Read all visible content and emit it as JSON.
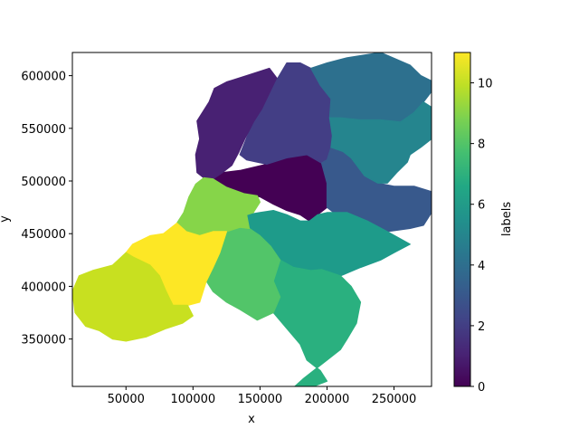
{
  "chart_data": {
    "type": "heatmap",
    "title": "",
    "xlabel": "x",
    "ylabel": "y",
    "xlim": [
      10000,
      278000
    ],
    "ylim": [
      305000,
      622000
    ],
    "x_ticks": [
      50000,
      100000,
      150000,
      200000,
      250000
    ],
    "y_ticks": [
      350000,
      400000,
      450000,
      500000,
      550000,
      600000
    ],
    "grid": false,
    "colorbar": {
      "label": "labels",
      "range": [
        0,
        11
      ],
      "ticks": [
        0,
        2,
        4,
        6,
        8,
        10
      ],
      "colormap": "viridis"
    },
    "regions": [
      {
        "label": 0,
        "color": "#440154",
        "outline": [
          [
            135000,
            510000
          ],
          [
            155000,
            516000
          ],
          [
            170000,
            522000
          ],
          [
            185000,
            525000
          ],
          [
            196000,
            517000
          ],
          [
            200000,
            498000
          ],
          [
            200000,
            475000
          ],
          [
            193000,
            468000
          ],
          [
            187000,
            462000
          ],
          [
            180000,
            468000
          ],
          [
            170000,
            472000
          ],
          [
            160000,
            478000
          ],
          [
            150000,
            485000
          ],
          [
            138000,
            488000
          ],
          [
            125000,
            494000
          ],
          [
            115000,
            502000
          ],
          [
            122000,
            508000
          ]
        ]
      },
      {
        "label": 1,
        "color": "#482173",
        "outline": [
          [
            116000,
            588000
          ],
          [
            125000,
            594000
          ],
          [
            140000,
            600000
          ],
          [
            157000,
            607000
          ],
          [
            163000,
            597000
          ],
          [
            159000,
            583000
          ],
          [
            152000,
            568000
          ],
          [
            146000,
            556000
          ],
          [
            139000,
            541000
          ],
          [
            134000,
            527000
          ],
          [
            129000,
            515000
          ],
          [
            122000,
            508000
          ],
          [
            115000,
            502000
          ],
          [
            108000,
            503000
          ],
          [
            103000,
            508000
          ],
          [
            102000,
            525000
          ],
          [
            105000,
            540000
          ],
          [
            103000,
            557000
          ],
          [
            112000,
            575000
          ]
        ]
      },
      {
        "label": 2,
        "color": "#433e85",
        "outline": [
          [
            163000,
            597000
          ],
          [
            170000,
            612000
          ],
          [
            180000,
            612000
          ],
          [
            188000,
            607000
          ],
          [
            195000,
            591000
          ],
          [
            203000,
            578000
          ],
          [
            202000,
            560000
          ],
          [
            204000,
            543000
          ],
          [
            203000,
            532000
          ],
          [
            200000,
            520000
          ],
          [
            196000,
            517000
          ],
          [
            185000,
            525000
          ],
          [
            170000,
            522000
          ],
          [
            155000,
            516000
          ],
          [
            140000,
            520000
          ],
          [
            135000,
            525000
          ],
          [
            140000,
            541000
          ],
          [
            146000,
            556000
          ],
          [
            152000,
            568000
          ]
        ]
      },
      {
        "label": 3,
        "color": "#38598c",
        "outline": [
          [
            203000,
            532000
          ],
          [
            212000,
            528000
          ],
          [
            218000,
            522000
          ],
          [
            228000,
            505000
          ],
          [
            238000,
            498000
          ],
          [
            250000,
            495000
          ],
          [
            265000,
            495000
          ],
          [
            278000,
            490000
          ],
          [
            278000,
            470000
          ],
          [
            272000,
            458000
          ],
          [
            262000,
            455000
          ],
          [
            245000,
            452000
          ],
          [
            230000,
            462000
          ],
          [
            215000,
            470000
          ],
          [
            205000,
            470000
          ],
          [
            200000,
            475000
          ],
          [
            200000,
            498000
          ],
          [
            196000,
            517000
          ],
          [
            200000,
            520000
          ]
        ]
      },
      {
        "label": 4,
        "color": "#2d708e",
        "outline": [
          [
            188000,
            607000
          ],
          [
            200000,
            612000
          ],
          [
            215000,
            617000
          ],
          [
            240000,
            622000
          ],
          [
            262000,
            610000
          ],
          [
            270000,
            600000
          ],
          [
            278000,
            595000
          ],
          [
            278000,
            585000
          ],
          [
            272000,
            575000
          ],
          [
            265000,
            565000
          ],
          [
            255000,
            556000
          ],
          [
            240000,
            558000
          ],
          [
            225000,
            558000
          ],
          [
            210000,
            560000
          ],
          [
            202000,
            560000
          ],
          [
            203000,
            578000
          ],
          [
            195000,
            591000
          ]
        ]
      },
      {
        "label": 5,
        "color": "#25858e",
        "outline": [
          [
            202000,
            560000
          ],
          [
            210000,
            560000
          ],
          [
            225000,
            558000
          ],
          [
            240000,
            558000
          ],
          [
            255000,
            556000
          ],
          [
            265000,
            565000
          ],
          [
            272000,
            575000
          ],
          [
            278000,
            570000
          ],
          [
            278000,
            540000
          ],
          [
            270000,
            532000
          ],
          [
            262000,
            525000
          ],
          [
            260000,
            518000
          ],
          [
            252000,
            508000
          ],
          [
            245000,
            498000
          ],
          [
            238000,
            498000
          ],
          [
            228000,
            505000
          ],
          [
            218000,
            522000
          ],
          [
            212000,
            528000
          ],
          [
            203000,
            532000
          ],
          [
            204000,
            543000
          ]
        ]
      },
      {
        "label": 6,
        "color": "#1e9b8a",
        "outline": [
          [
            140000,
            468000
          ],
          [
            150000,
            470000
          ],
          [
            160000,
            472000
          ],
          [
            170000,
            468000
          ],
          [
            180000,
            462000
          ],
          [
            187000,
            462000
          ],
          [
            193000,
            468000
          ],
          [
            200000,
            470000
          ],
          [
            205000,
            470000
          ],
          [
            215000,
            470000
          ],
          [
            230000,
            462000
          ],
          [
            245000,
            452000
          ],
          [
            262000,
            440000
          ],
          [
            250000,
            432000
          ],
          [
            240000,
            425000
          ],
          [
            225000,
            418000
          ],
          [
            210000,
            410000
          ],
          [
            196000,
            416000
          ],
          [
            188000,
            415000
          ],
          [
            175000,
            418000
          ],
          [
            165000,
            425000
          ],
          [
            158000,
            438000
          ],
          [
            150000,
            448000
          ],
          [
            142000,
            455000
          ]
        ]
      },
      {
        "label": 7,
        "color": "#2ab07f",
        "outline": [
          [
            165000,
            425000
          ],
          [
            175000,
            418000
          ],
          [
            188000,
            415000
          ],
          [
            196000,
            416000
          ],
          [
            210000,
            410000
          ],
          [
            218000,
            400000
          ],
          [
            225000,
            385000
          ],
          [
            222000,
            365000
          ],
          [
            215000,
            350000
          ],
          [
            210000,
            340000
          ],
          [
            200000,
            330000
          ],
          [
            192000,
            322000
          ],
          [
            182000,
            312000
          ],
          [
            176000,
            305000
          ],
          [
            190000,
            305000
          ],
          [
            200000,
            310000
          ],
          [
            195000,
            320000
          ],
          [
            185000,
            330000
          ],
          [
            180000,
            345000
          ],
          [
            170000,
            360000
          ],
          [
            160000,
            375000
          ],
          [
            165000,
            390000
          ],
          [
            160000,
            405000
          ]
        ]
      },
      {
        "label": 8,
        "color": "#52c569",
        "outline": [
          [
            125000,
            452000
          ],
          [
            135000,
            456000
          ],
          [
            142000,
            455000
          ],
          [
            150000,
            448000
          ],
          [
            158000,
            438000
          ],
          [
            165000,
            425000
          ],
          [
            160000,
            405000
          ],
          [
            165000,
            390000
          ],
          [
            160000,
            375000
          ],
          [
            148000,
            368000
          ],
          [
            135000,
            378000
          ],
          [
            125000,
            385000
          ],
          [
            115000,
            395000
          ],
          [
            110000,
            405000
          ],
          [
            115000,
            418000
          ],
          [
            120000,
            432000
          ]
        ]
      },
      {
        "label": 9,
        "color": "#86d549",
        "outline": [
          [
            102000,
            497000
          ],
          [
            108000,
            503000
          ],
          [
            115000,
            502000
          ],
          [
            125000,
            494000
          ],
          [
            138000,
            488000
          ],
          [
            148000,
            486000
          ],
          [
            150000,
            480000
          ],
          [
            145000,
            470000
          ],
          [
            140000,
            468000
          ],
          [
            142000,
            455000
          ],
          [
            135000,
            456000
          ],
          [
            125000,
            452000
          ],
          [
            115000,
            452000
          ],
          [
            105000,
            448000
          ],
          [
            95000,
            452000
          ],
          [
            88000,
            460000
          ],
          [
            93000,
            470000
          ],
          [
            97000,
            485000
          ]
        ]
      },
      {
        "label": 10,
        "color": "#fde725",
        "outline": [
          [
            68000,
            448000
          ],
          [
            78000,
            450000
          ],
          [
            88000,
            460000
          ],
          [
            95000,
            452000
          ],
          [
            105000,
            448000
          ],
          [
            115000,
            452000
          ],
          [
            125000,
            452000
          ],
          [
            120000,
            432000
          ],
          [
            115000,
            418000
          ],
          [
            110000,
            405000
          ],
          [
            105000,
            385000
          ],
          [
            96000,
            382000
          ],
          [
            85000,
            382000
          ],
          [
            80000,
            395000
          ],
          [
            75000,
            410000
          ],
          [
            68000,
            420000
          ],
          [
            55000,
            428000
          ],
          [
            50000,
            432000
          ],
          [
            55000,
            440000
          ]
        ]
      },
      {
        "label": 11,
        "color": "#c8e020",
        "outline": [
          [
            40000,
            420000
          ],
          [
            50000,
            432000
          ],
          [
            55000,
            428000
          ],
          [
            68000,
            420000
          ],
          [
            75000,
            410000
          ],
          [
            80000,
            395000
          ],
          [
            85000,
            382000
          ],
          [
            96000,
            382000
          ],
          [
            100000,
            372000
          ],
          [
            92000,
            365000
          ],
          [
            80000,
            360000
          ],
          [
            65000,
            352000
          ],
          [
            50000,
            348000
          ],
          [
            40000,
            350000
          ],
          [
            30000,
            358000
          ],
          [
            20000,
            362000
          ],
          [
            12000,
            375000
          ],
          [
            10000,
            395000
          ],
          [
            15000,
            410000
          ],
          [
            25000,
            415000
          ]
        ]
      }
    ]
  }
}
